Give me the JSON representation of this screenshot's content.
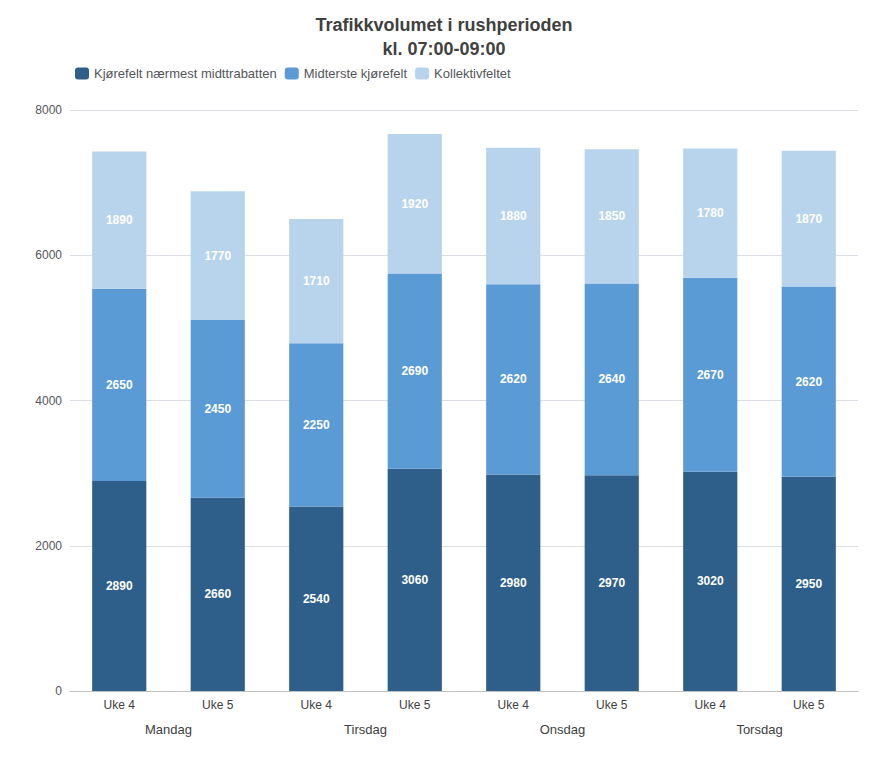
{
  "chart_data": {
    "type": "bar",
    "title": "Trafikkvolumet i rushperioden\nkl. 07:00-09:00",
    "categories": [
      "Uke 4",
      "Uke 5",
      "Uke 4",
      "Uke 5",
      "Uke 4",
      "Uke 5",
      "Uke 4",
      "Uke 5"
    ],
    "groups": [
      "Mandag",
      "Tirsdag",
      "Onsdag",
      "Torsdag"
    ],
    "series": [
      {
        "name": "Kjørefelt nærmest midttrabatten",
        "color": "#2E5F8A",
        "values": [
          2890,
          2660,
          2540,
          3060,
          2980,
          2970,
          3020,
          2950
        ]
      },
      {
        "name": "Midterste kjørefelt",
        "color": "#5B9BD5",
        "values": [
          2650,
          2450,
          2250,
          2690,
          2620,
          2640,
          2670,
          2620
        ]
      },
      {
        "name": "Kollektivfeltet",
        "color": "#B8D4ED",
        "values": [
          1890,
          1770,
          1710,
          1920,
          1880,
          1850,
          1780,
          1870
        ]
      }
    ],
    "stacked": true,
    "data_labels": true,
    "ylim": [
      0,
      8000
    ],
    "yticks": [
      0,
      2000,
      4000,
      6000,
      8000
    ],
    "grid": true,
    "legend": "upper left"
  }
}
